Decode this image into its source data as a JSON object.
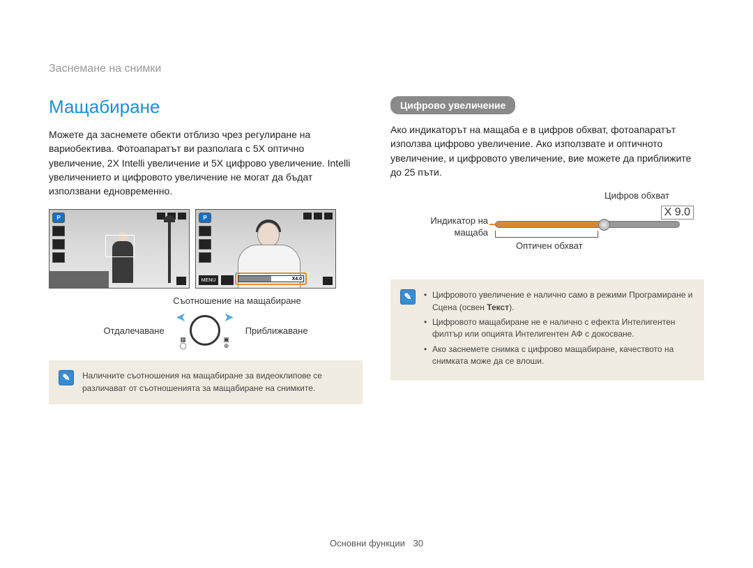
{
  "header": "Заснемане на снимки",
  "left": {
    "title": "Мащабиране",
    "body": "Можете да заснемете обекти отблизо чрез регулиране на вариобектива. Фотоапаратът ви разполага с 5X оптично увеличение, 2X Intelli увеличение и 5X цифрово увеличение. Intelli увеличението и цифровото увеличение не могат да бъдат използвани едновременно.",
    "lcd_mode_icon": "P",
    "lcd_menu_label": "MENU",
    "zoom_bar_value": "X4.0",
    "ratio_label": "Съотношение на мащабиране",
    "zoom_out_label": "Отдалечаване",
    "zoom_in_label": "Приближаване",
    "note": "Наличните съотношения на мащабиране за видеоклипове се различават от съотношенията за мащабиране на снимките."
  },
  "right": {
    "pill": "Цифрово увеличение",
    "body": "Ако индикаторът на мащаба е в цифров обхват, фотоапаратът използва цифрово увеличение. Ако използвате и оптичното увеличение, и цифровото увеличение, вие можете да приближите до 25 пъти.",
    "digital_range_label": "Цифров обхват",
    "zoom_value": "X 9.0",
    "indicator_label_1": "Индикатор на",
    "indicator_label_2": "мащаба",
    "optical_range_label": "Оптичен обхват",
    "notes": [
      {
        "pre": "Цифровото увеличение е налично само в режими Програмиране и Сцена (освен ",
        "bold": "Текст",
        "post": ")."
      },
      {
        "pre": "Цифровото мащабиране не е налично с ефекта Интелигентен филтър или опцията Интелигентен АФ с докосване.",
        "bold": "",
        "post": ""
      },
      {
        "pre": "Ако заснемете снимка с цифрово мащабиране, качеството на снимката може да се влоши.",
        "bold": "",
        "post": ""
      }
    ]
  },
  "footer": {
    "section": "Основни функции",
    "page": "30"
  },
  "colors": {
    "accent": "#1a8fd4",
    "highlight": "#e88a2a",
    "pill_bg": "#8a8a8a",
    "note_bg": "#f1ece1",
    "note_icon_bg": "#3a8bcf",
    "scale_orange": "#d48839",
    "scale_grey": "#989898"
  }
}
